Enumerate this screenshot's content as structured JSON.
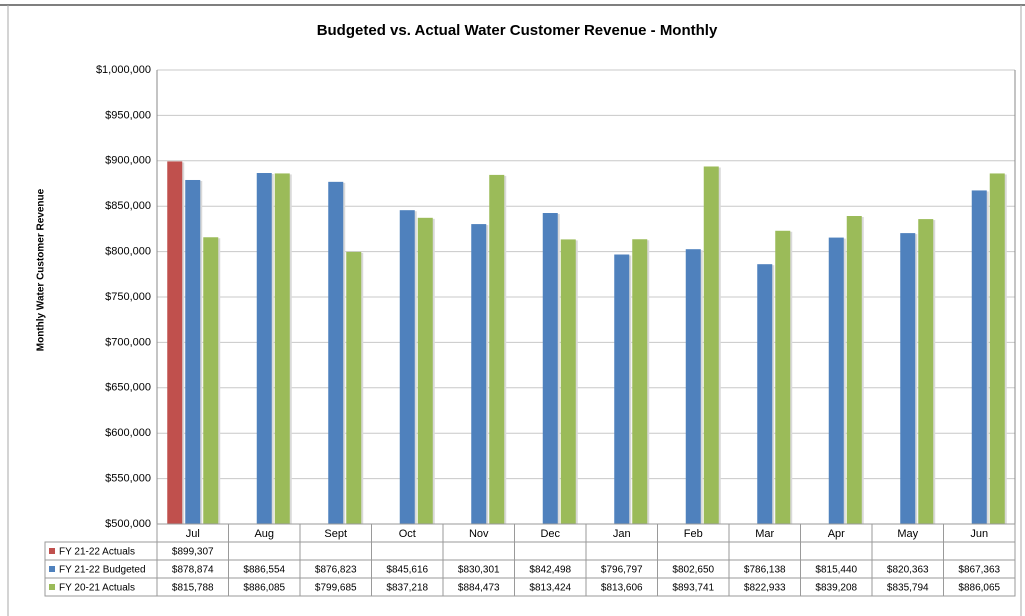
{
  "chart_data": {
    "type": "bar",
    "title": "Budgeted vs. Actual Water Customer Revenue - Monthly",
    "y_label": "Monthly Water Customer Revenue",
    "categories": [
      "Jul",
      "Aug",
      "Sept",
      "Oct",
      "Nov",
      "Dec",
      "Jan",
      "Feb",
      "Mar",
      "Apr",
      "May",
      "Jun"
    ],
    "series": [
      {
        "name": "FY 21-22 Actuals",
        "color": "#c0504d",
        "values": [
          899307,
          null,
          null,
          null,
          null,
          null,
          null,
          null,
          null,
          null,
          null,
          null
        ],
        "value_labels": [
          "$899,307",
          null,
          null,
          null,
          null,
          null,
          null,
          null,
          null,
          null,
          null,
          null
        ]
      },
      {
        "name": "FY 21-22 Budgeted",
        "color": "#4f81bd",
        "values": [
          878874,
          886554,
          876823,
          845616,
          830301,
          842498,
          796797,
          802650,
          786138,
          815440,
          820363,
          867363
        ],
        "value_labels": [
          "$878,874",
          "$886,554",
          "$876,823",
          "$845,616",
          "$830,301",
          "$842,498",
          "$796,797",
          "$802,650",
          "$786,138",
          "$815,440",
          "$820,363",
          "$867,363"
        ]
      },
      {
        "name": "FY 20-21 Actuals",
        "color": "#9bbb59",
        "values": [
          815788,
          886085,
          799685,
          837218,
          884473,
          813424,
          813606,
          893741,
          822933,
          839208,
          835794,
          886065
        ],
        "value_labels": [
          "$815,788",
          "$886,085",
          "$799,685",
          "$837,218",
          "$884,473",
          "$813,424",
          "$813,606",
          "$893,741",
          "$822,933",
          "$839,208",
          "$835,794",
          "$886,065"
        ]
      }
    ],
    "ylim": [
      500000,
      1000000
    ],
    "yticks": [
      {
        "value": 500000,
        "label": "$500,000"
      },
      {
        "value": 550000,
        "label": "$550,000"
      },
      {
        "value": 600000,
        "label": "$600,000"
      },
      {
        "value": 650000,
        "label": "$650,000"
      },
      {
        "value": 700000,
        "label": "$700,000"
      },
      {
        "value": 750000,
        "label": "$750,000"
      },
      {
        "value": 800000,
        "label": "$800,000"
      },
      {
        "value": 850000,
        "label": "$850,000"
      },
      {
        "value": 900000,
        "label": "$900,000"
      },
      {
        "value": 950000,
        "label": "$950,000"
      },
      {
        "value": 1000000,
        "label": "$1,000,000"
      }
    ],
    "grid": true,
    "data_table": true
  }
}
